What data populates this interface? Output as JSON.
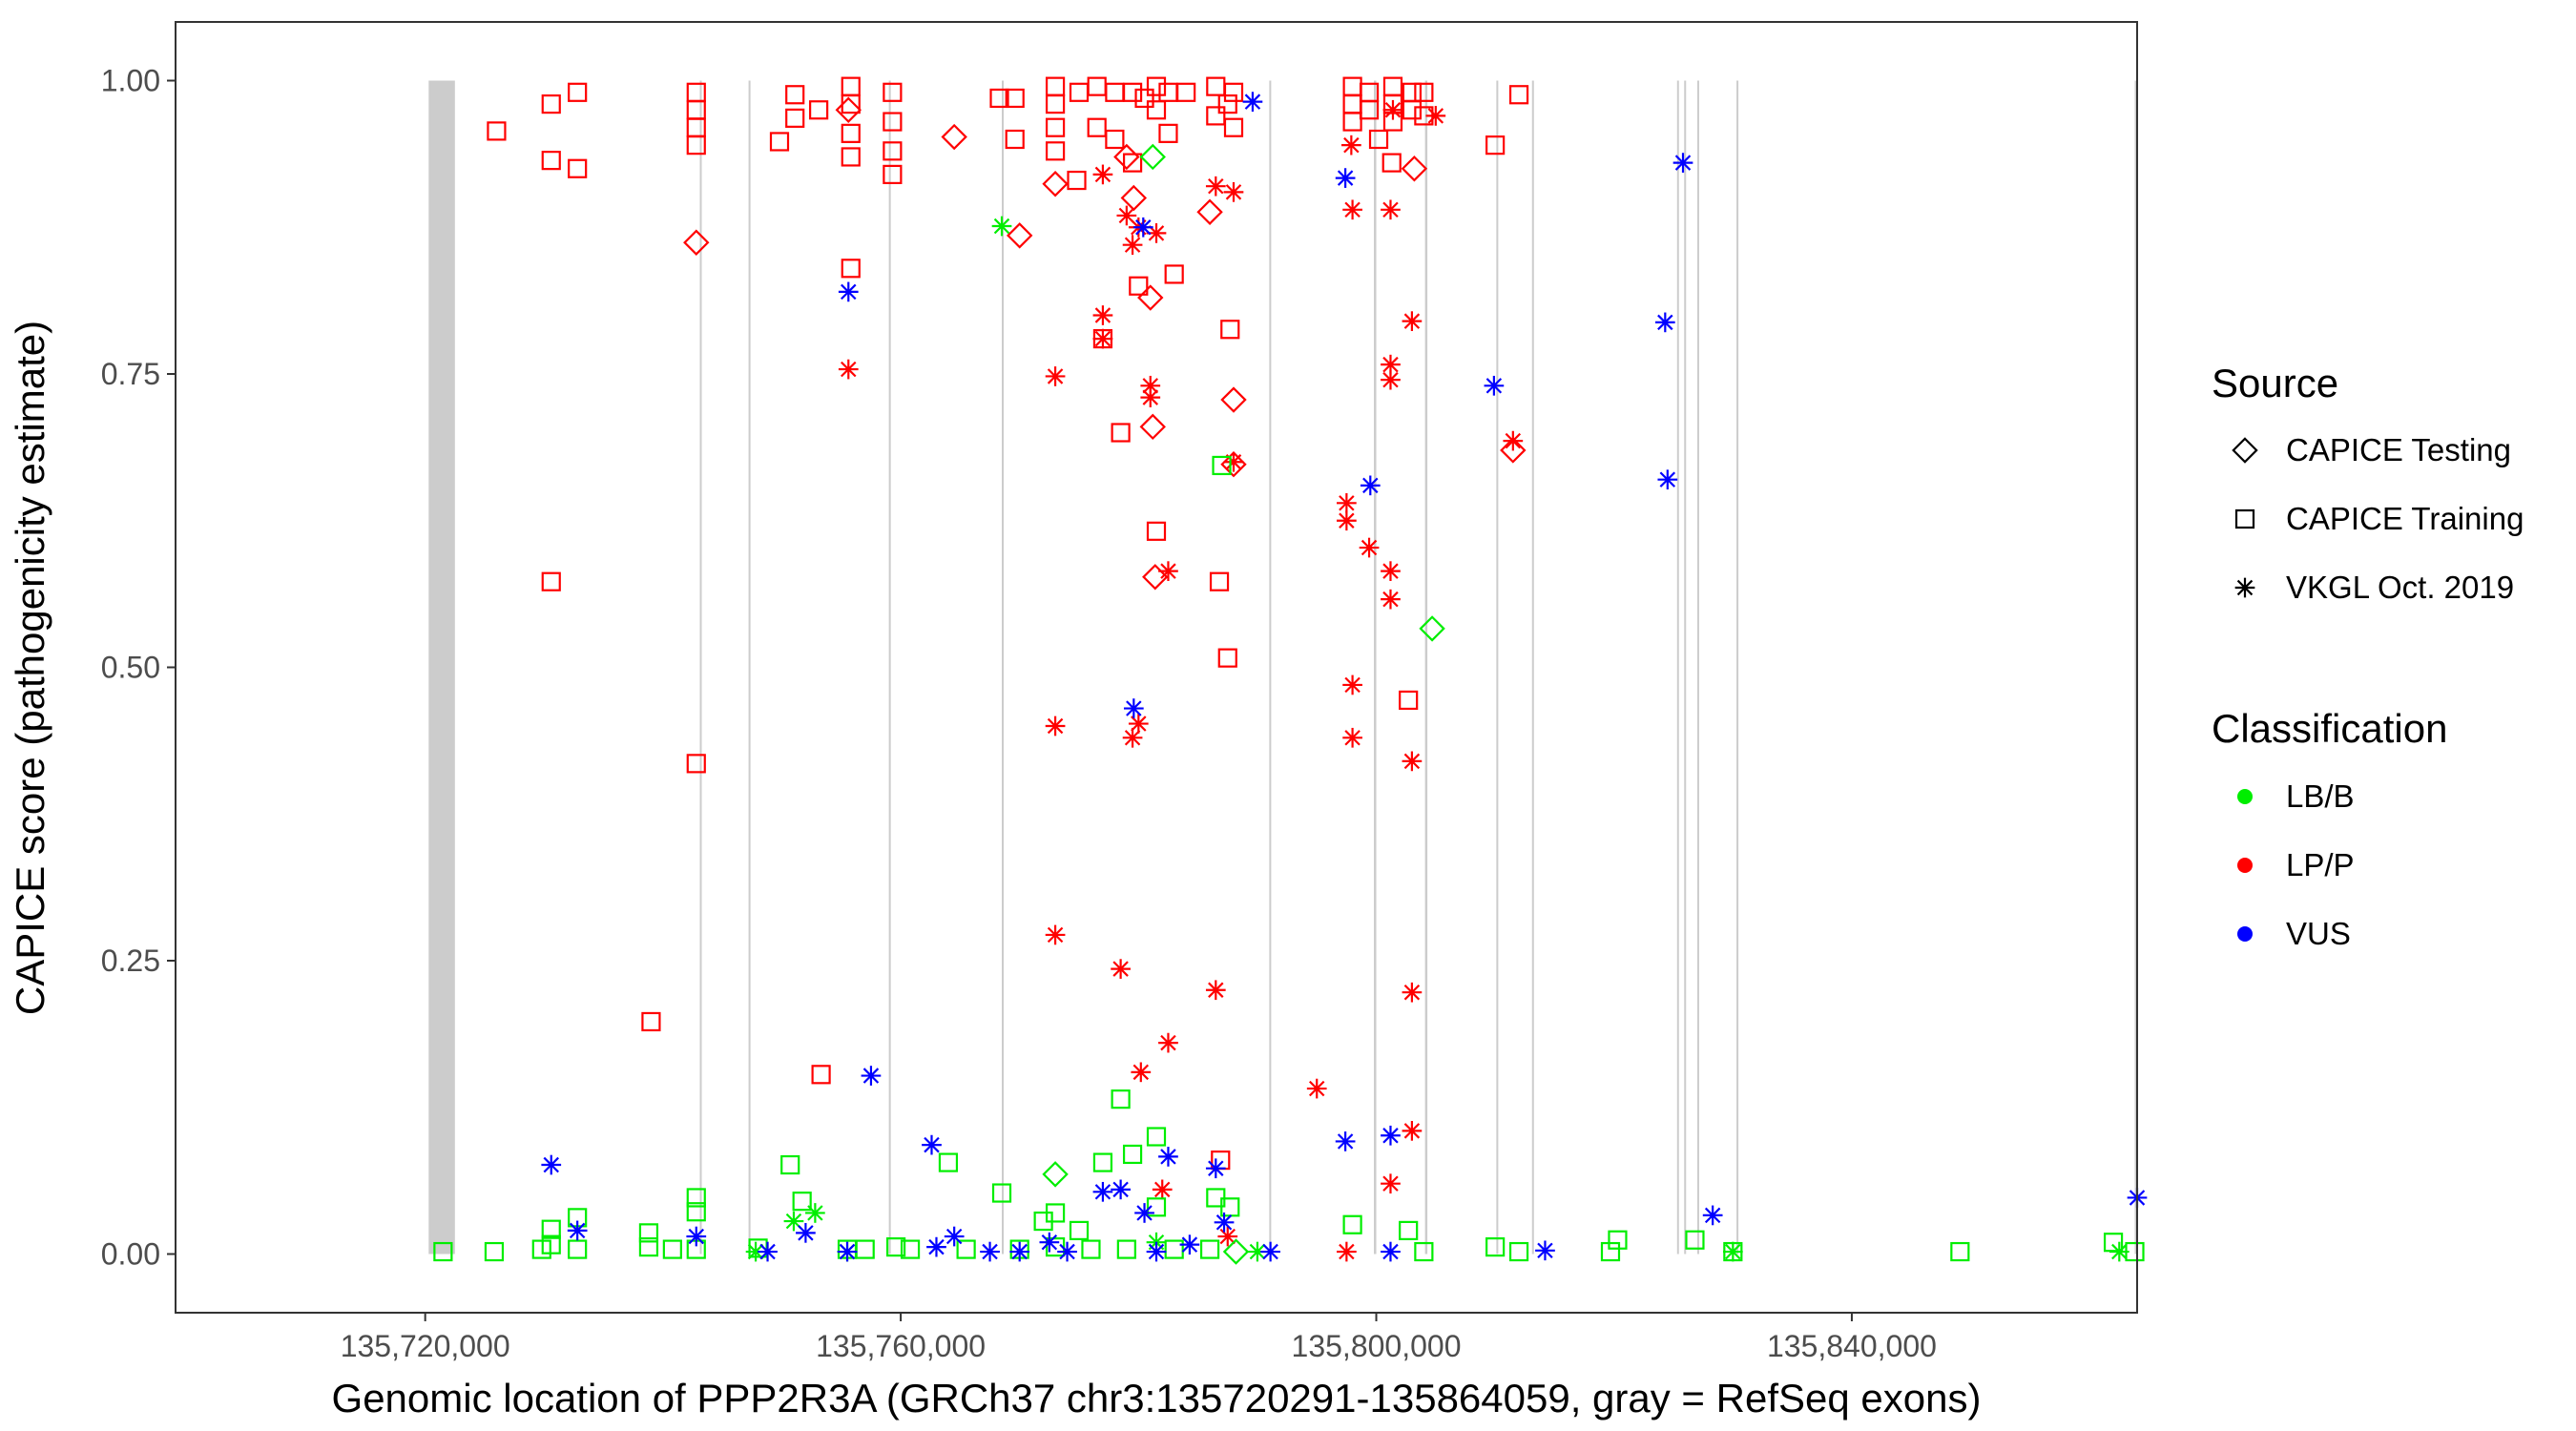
{
  "chart_data": {
    "type": "scatter",
    "title": "",
    "xlabel": "Genomic location of PPP2R3A (GRCh37 chr3:135720291-135864059, gray = RefSeq exons)",
    "ylabel": "CAPICE score (pathogenicity estimate)",
    "xlim": [
      135699000,
      135864000
    ],
    "ylim": [
      -0.05,
      1.05
    ],
    "x_ticks": [
      135720000,
      135760000,
      135800000,
      135840000
    ],
    "x_tick_labels": [
      "135,720,000",
      "135,760,000",
      "135,800,000",
      "135,840,000"
    ],
    "y_ticks": [
      0,
      0.25,
      0.5,
      0.75,
      1
    ],
    "y_tick_labels": [
      "0.00",
      "0.25",
      "0.50",
      "0.75",
      "1.00"
    ],
    "exons": [
      [
        135720291,
        135722500
      ],
      [
        135743100,
        135743250
      ],
      [
        135747200,
        135747350
      ],
      [
        135759000,
        135759120
      ],
      [
        135768500,
        135768650
      ],
      [
        135791000,
        135791120
      ],
      [
        135799800,
        135800000
      ],
      [
        135804100,
        135804300
      ],
      [
        135810100,
        135810230
      ],
      [
        135813100,
        135813230
      ],
      [
        135825300,
        135825430
      ],
      [
        135825900,
        135826030
      ],
      [
        135827000,
        135827130
      ],
      [
        135830300,
        135830430
      ],
      [
        135863800,
        135863950
      ]
    ],
    "legend": {
      "source_title": "Source",
      "source_items": [
        {
          "label": "CAPICE Testing",
          "shape": "diamond"
        },
        {
          "label": "CAPICE Training",
          "shape": "square"
        },
        {
          "label": "VKGL Oct. 2019",
          "shape": "asterisk"
        }
      ],
      "class_title": "Classification",
      "class_items": [
        {
          "label": "LB/B",
          "color": "#00ee00"
        },
        {
          "label": "LP/P",
          "color": "#ff0000"
        },
        {
          "label": "VUS",
          "color": "#0000ff"
        }
      ]
    },
    "series": [
      {
        "name": "CAPICE Training LP/P",
        "shape": "square",
        "color": "#ff0000",
        "points": [
          [
            135726000,
            0.957
          ],
          [
            135730600,
            0.98
          ],
          [
            135730600,
            0.932
          ],
          [
            135732800,
            0.99
          ],
          [
            135732800,
            0.925
          ],
          [
            135730600,
            0.573
          ],
          [
            135739000,
            0.198
          ],
          [
            135742800,
            0.99
          ],
          [
            135742800,
            0.975
          ],
          [
            135742800,
            0.96
          ],
          [
            135742800,
            0.945
          ],
          [
            135742800,
            0.418
          ],
          [
            135749800,
            0.948
          ],
          [
            135751100,
            0.988
          ],
          [
            135751100,
            0.968
          ],
          [
            135753100,
            0.975
          ],
          [
            135755800,
            0.995
          ],
          [
            135755800,
            0.98
          ],
          [
            135755800,
            0.955
          ],
          [
            135755800,
            0.935
          ],
          [
            135755800,
            0.84
          ],
          [
            135759300,
            0.99
          ],
          [
            135759300,
            0.965
          ],
          [
            135759300,
            0.94
          ],
          [
            135759300,
            0.92
          ],
          [
            135753300,
            0.153
          ],
          [
            135768300,
            0.985
          ],
          [
            135769600,
            0.985
          ],
          [
            135769600,
            0.95
          ],
          [
            135773000,
            0.995
          ],
          [
            135773000,
            0.98
          ],
          [
            135773000,
            0.96
          ],
          [
            135773000,
            0.94
          ],
          [
            135775000,
            0.99
          ],
          [
            135776500,
            0.995
          ],
          [
            135776500,
            0.96
          ],
          [
            135778000,
            0.99
          ],
          [
            135778000,
            0.95
          ],
          [
            135779500,
            0.99
          ],
          [
            135779500,
            0.93
          ],
          [
            135780500,
            0.985
          ],
          [
            135781500,
            0.995
          ],
          [
            135781500,
            0.975
          ],
          [
            135782500,
            0.99
          ],
          [
            135782500,
            0.955
          ],
          [
            135784000,
            0.99
          ],
          [
            135786500,
            0.995
          ],
          [
            135786500,
            0.97
          ],
          [
            135787500,
            0.98
          ],
          [
            135788000,
            0.99
          ],
          [
            135788000,
            0.96
          ],
          [
            135786800,
            0.573
          ],
          [
            135787500,
            0.508
          ],
          [
            135787700,
            0.788
          ],
          [
            135777000,
            0.78
          ],
          [
            135778500,
            0.7
          ],
          [
            135780000,
            0.825
          ],
          [
            135783000,
            0.835
          ],
          [
            135774800,
            0.915
          ],
          [
            135781500,
            0.616
          ],
          [
            135786900,
            0.08
          ],
          [
            135798000,
            0.995
          ],
          [
            135798000,
            0.98
          ],
          [
            135798000,
            0.965
          ],
          [
            135799400,
            0.99
          ],
          [
            135799400,
            0.975
          ],
          [
            135801400,
            0.995
          ],
          [
            135801400,
            0.98
          ],
          [
            135801400,
            0.965
          ],
          [
            135803000,
            0.99
          ],
          [
            135803000,
            0.975
          ],
          [
            135804000,
            0.99
          ],
          [
            135804000,
            0.97
          ],
          [
            135800200,
            0.95
          ],
          [
            135801300,
            0.93
          ],
          [
            135802700,
            0.472
          ],
          [
            135810000,
            0.945
          ],
          [
            135812000,
            0.988
          ]
        ]
      },
      {
        "name": "CAPICE Testing LP/P",
        "shape": "diamond",
        "color": "#ff0000",
        "points": [
          [
            135742800,
            0.862
          ],
          [
            135755600,
            0.975
          ],
          [
            135764500,
            0.952
          ],
          [
            135770000,
            0.868
          ],
          [
            135773000,
            0.912
          ],
          [
            135779600,
            0.9
          ],
          [
            135781000,
            0.815
          ],
          [
            135781200,
            0.705
          ],
          [
            135781400,
            0.577
          ],
          [
            135786000,
            0.888
          ],
          [
            135788000,
            0.728
          ],
          [
            135788000,
            0.673
          ],
          [
            135803200,
            0.925
          ],
          [
            135811500,
            0.685
          ],
          [
            135779000,
            0.935
          ]
        ]
      },
      {
        "name": "VKGL LP/P",
        "shape": "asterisk",
        "color": "#ff0000",
        "points": [
          [
            135755600,
            0.754
          ],
          [
            135773000,
            0.748
          ],
          [
            135773000,
            0.45
          ],
          [
            135773000,
            0.272
          ],
          [
            135777000,
            0.8
          ],
          [
            135777000,
            0.78
          ],
          [
            135777000,
            0.92
          ],
          [
            135778500,
            0.243
          ],
          [
            135779000,
            0.885
          ],
          [
            135779500,
            0.44
          ],
          [
            135779500,
            0.86
          ],
          [
            135780000,
            0.452
          ],
          [
            135780000,
            0.875
          ],
          [
            135780200,
            0.155
          ],
          [
            135781000,
            0.74
          ],
          [
            135781000,
            0.73
          ],
          [
            135781500,
            0.87
          ],
          [
            135782500,
            0.582
          ],
          [
            135782500,
            0.18
          ],
          [
            135782000,
            0.055
          ],
          [
            135786500,
            0.91
          ],
          [
            135786500,
            0.225
          ],
          [
            135788000,
            0.675
          ],
          [
            135788000,
            0.905
          ],
          [
            135787500,
            0.015
          ],
          [
            135795000,
            0.141
          ],
          [
            135797500,
            0.64
          ],
          [
            135797500,
            0.625
          ],
          [
            135797900,
            0.945
          ],
          [
            135798000,
            0.89
          ],
          [
            135798000,
            0.485
          ],
          [
            135798000,
            0.44
          ],
          [
            135799400,
            0.602
          ],
          [
            135801200,
            0.89
          ],
          [
            135801200,
            0.758
          ],
          [
            135801200,
            0.745
          ],
          [
            135801200,
            0.582
          ],
          [
            135801200,
            0.558
          ],
          [
            135801200,
            0.06
          ],
          [
            135801400,
            0.975
          ],
          [
            135803000,
            0.795
          ],
          [
            135803000,
            0.42
          ],
          [
            135803000,
            0.223
          ],
          [
            135803000,
            0.105
          ],
          [
            135797500,
            0.002
          ],
          [
            135805000,
            0.97
          ],
          [
            135811500,
            0.693
          ]
        ]
      },
      {
        "name": "CAPICE Training LB/B",
        "shape": "square",
        "color": "#00ee00",
        "points": [
          [
            135721500,
            0.002
          ],
          [
            135725800,
            0.002
          ],
          [
            135729800,
            0.004
          ],
          [
            135730600,
            0.021
          ],
          [
            135730600,
            0.008
          ],
          [
            135732800,
            0.031
          ],
          [
            135732800,
            0.004
          ],
          [
            135738800,
            0.018
          ],
          [
            135738800,
            0.006
          ],
          [
            135740800,
            0.004
          ],
          [
            135742800,
            0.048
          ],
          [
            135742800,
            0.036
          ],
          [
            135742800,
            0.004
          ],
          [
            135748000,
            0.005
          ],
          [
            135750700,
            0.076
          ],
          [
            135751700,
            0.045
          ],
          [
            135755500,
            0.004
          ],
          [
            135759600,
            0.006
          ],
          [
            135760800,
            0.004
          ],
          [
            135764000,
            0.078
          ],
          [
            135768500,
            0.052
          ],
          [
            135772000,
            0.028
          ],
          [
            135773000,
            0.035
          ],
          [
            135773000,
            0.006
          ],
          [
            135775000,
            0.02
          ],
          [
            135777000,
            0.078
          ],
          [
            135778500,
            0.132
          ],
          [
            135779500,
            0.085
          ],
          [
            135781500,
            0.1
          ],
          [
            135781500,
            0.04
          ],
          [
            135786500,
            0.048
          ],
          [
            135787700,
            0.04
          ],
          [
            135787000,
            0.672
          ],
          [
            135798000,
            0.025
          ],
          [
            135802700,
            0.02
          ],
          [
            135804000,
            0.002
          ],
          [
            135810000,
            0.006
          ],
          [
            135812000,
            0.002
          ],
          [
            135819700,
            0.002
          ],
          [
            135820300,
            0.012
          ],
          [
            135826800,
            0.012
          ],
          [
            135830000,
            0.002
          ],
          [
            135849100,
            0.002
          ],
          [
            135862000,
            0.01
          ],
          [
            135863800,
            0.002
          ],
          [
            135770000,
            0.004
          ],
          [
            135776000,
            0.004
          ],
          [
            135779000,
            0.004
          ],
          [
            135783000,
            0.004
          ],
          [
            135786000,
            0.004
          ],
          [
            135765500,
            0.004
          ],
          [
            135757000,
            0.004
          ]
        ]
      },
      {
        "name": "CAPICE Testing LB/B",
        "shape": "diamond",
        "color": "#00ee00",
        "points": [
          [
            135773000,
            0.068
          ],
          [
            135781200,
            0.935
          ],
          [
            135804700,
            0.533
          ],
          [
            135788200,
            0.002
          ]
        ]
      },
      {
        "name": "VKGL LB/B",
        "shape": "asterisk",
        "color": "#00ee00",
        "points": [
          [
            135751000,
            0.028
          ],
          [
            135752800,
            0.035
          ],
          [
            135768500,
            0.876
          ],
          [
            135781500,
            0.01
          ],
          [
            135790000,
            0.002
          ],
          [
            135830000,
            0.002
          ],
          [
            135862500,
            0.002
          ],
          [
            135755500,
            0.002
          ],
          [
            135747800,
            0.002
          ]
        ]
      },
      {
        "name": "VKGL VUS",
        "shape": "asterisk",
        "color": "#0000ff",
        "points": [
          [
            135730600,
            0.076
          ],
          [
            135732800,
            0.02
          ],
          [
            135742800,
            0.015
          ],
          [
            135748800,
            0.002
          ],
          [
            135752000,
            0.018
          ],
          [
            135755600,
            0.82
          ],
          [
            135757500,
            0.152
          ],
          [
            135762600,
            0.093
          ],
          [
            135764500,
            0.015
          ],
          [
            135763000,
            0.006
          ],
          [
            135767500,
            0.002
          ],
          [
            135770000,
            0.002
          ],
          [
            135772500,
            0.01
          ],
          [
            135774000,
            0.002
          ],
          [
            135777000,
            0.053
          ],
          [
            135778500,
            0.055
          ],
          [
            135779600,
            0.465
          ],
          [
            135780400,
            0.875
          ],
          [
            135780500,
            0.035
          ],
          [
            135781500,
            0.002
          ],
          [
            135782500,
            0.083
          ],
          [
            135784300,
            0.008
          ],
          [
            135786500,
            0.073
          ],
          [
            135787200,
            0.027
          ],
          [
            135789600,
            0.982
          ],
          [
            135791100,
            0.002
          ],
          [
            135797400,
            0.917
          ],
          [
            135797400,
            0.096
          ],
          [
            135799500,
            0.655
          ],
          [
            135801200,
            0.101
          ],
          [
            135801200,
            0.002
          ],
          [
            135809900,
            0.74
          ],
          [
            135814200,
            0.003
          ],
          [
            135824300,
            0.794
          ],
          [
            135824500,
            0.66
          ],
          [
            135825800,
            0.93
          ],
          [
            135828300,
            0.033
          ],
          [
            135864000,
            0.048
          ],
          [
            135755500,
            0.002
          ]
        ]
      }
    ]
  }
}
